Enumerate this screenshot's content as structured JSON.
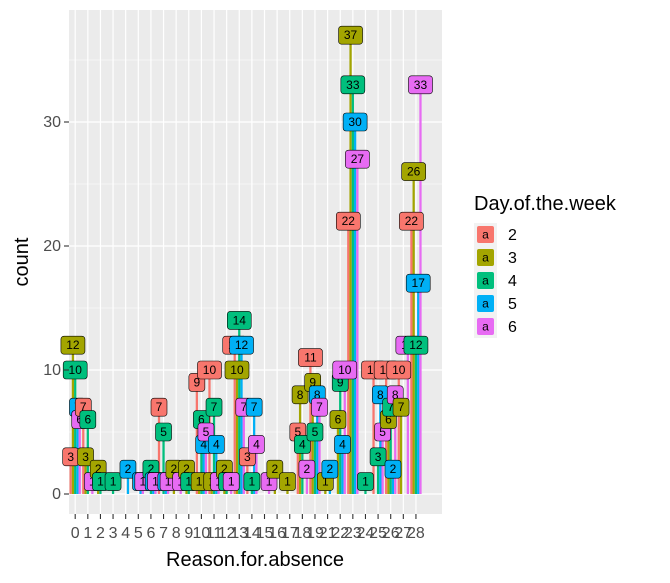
{
  "chart_data": {
    "type": "bar",
    "position": "dodge",
    "xlabel": "Reason.for.absence",
    "ylabel": "count",
    "ylim": [
      0,
      38
    ],
    "yticks": [
      0,
      10,
      20,
      30
    ],
    "grid": true,
    "categories": [
      "0",
      "1",
      "2",
      "3",
      "4",
      "5",
      "6",
      "7",
      "8",
      "9",
      "10",
      "11",
      "12",
      "13",
      "14",
      "15",
      "16",
      "17",
      "18",
      "19",
      "21",
      "22",
      "23",
      "24",
      "25",
      "26",
      "27",
      "28"
    ],
    "legend": {
      "title": "Day.of.the.week",
      "placement": "right",
      "key_glyph": "a"
    },
    "series": [
      {
        "name": "2",
        "color": "#F8766D",
        "values": [
          3,
          7,
          0,
          0,
          0,
          0,
          0,
          7,
          0,
          0,
          9,
          10,
          0,
          12,
          3,
          0,
          0,
          0,
          5,
          11,
          0,
          0,
          22,
          0,
          10,
          10,
          10,
          22
        ]
      },
      {
        "name": "3",
        "color": "#A3A500",
        "values": [
          12,
          3,
          2,
          0,
          0,
          0,
          0,
          0,
          2,
          2,
          1,
          1,
          2,
          10,
          0,
          0,
          2,
          1,
          8,
          9,
          1,
          6,
          37,
          0,
          0,
          6,
          7,
          26
        ]
      },
      {
        "name": "4",
        "color": "#00BF7D",
        "values": [
          10,
          6,
          1,
          1,
          0,
          0,
          2,
          5,
          0,
          1,
          6,
          7,
          1,
          14,
          1,
          0,
          0,
          0,
          4,
          5,
          0,
          9,
          33,
          1,
          3,
          7,
          0,
          12
        ]
      },
      {
        "name": "5",
        "color": "#00B0F6",
        "values": [
          7,
          0,
          0,
          0,
          2,
          1,
          1,
          1,
          0,
          0,
          4,
          4,
          0,
          12,
          7,
          0,
          0,
          0,
          0,
          8,
          2,
          4,
          30,
          0,
          8,
          2,
          0,
          17
        ]
      },
      {
        "name": "6",
        "color": "#E76BF3",
        "values": [
          6,
          1,
          0,
          0,
          0,
          1,
          1,
          1,
          1,
          0,
          5,
          1,
          1,
          7,
          4,
          1,
          0,
          0,
          2,
          7,
          0,
          10,
          27,
          0,
          5,
          8,
          12,
          33
        ]
      }
    ]
  }
}
